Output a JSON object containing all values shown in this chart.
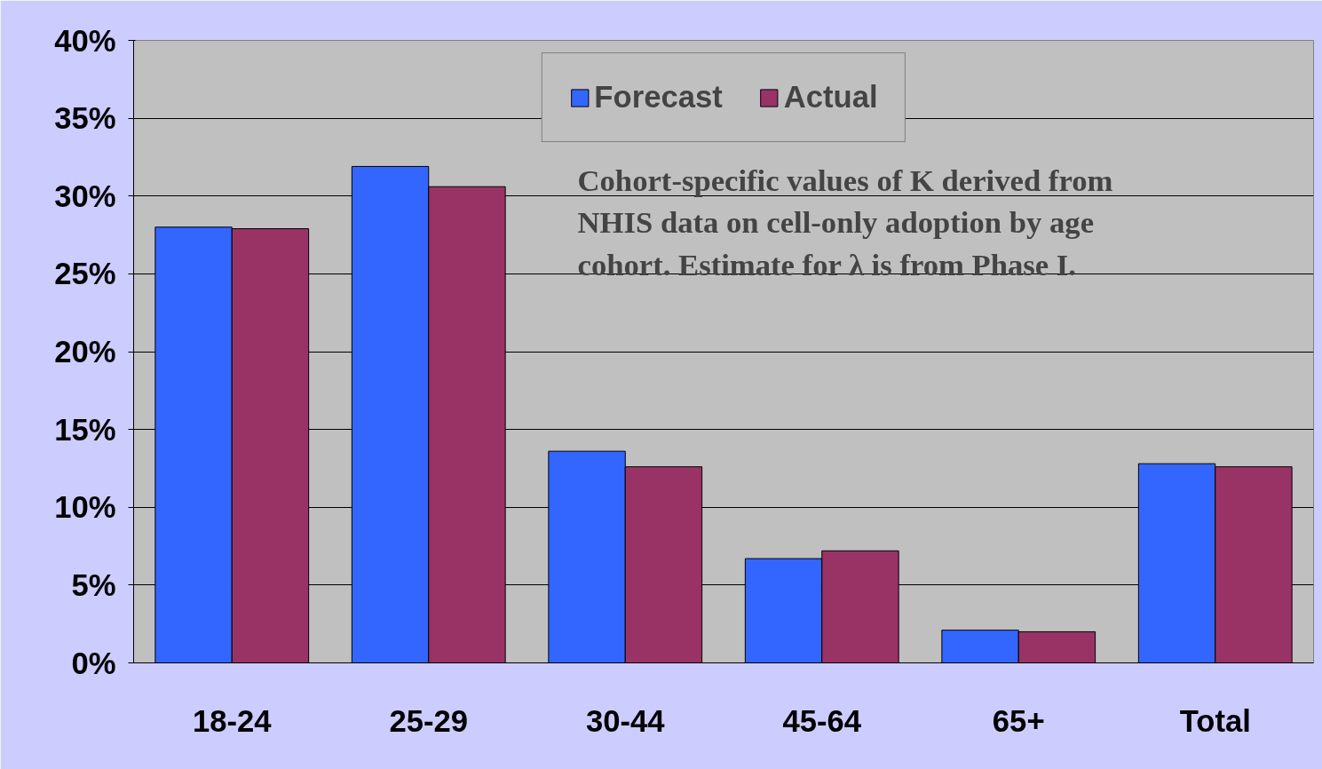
{
  "chart_data": {
    "type": "bar",
    "categories": [
      "18-24",
      "25-29",
      "30-44",
      "45-64",
      "65+",
      "Total"
    ],
    "series": [
      {
        "name": "Forecast",
        "color": "#3366ff",
        "values": [
          28.0,
          31.9,
          13.6,
          6.7,
          2.1,
          12.8
        ]
      },
      {
        "name": "Actual",
        "color": "#993366",
        "values": [
          27.9,
          30.6,
          12.6,
          7.2,
          2.0,
          12.6
        ]
      }
    ],
    "ylim": [
      0,
      40
    ],
    "yticks": [
      {
        "value": 0,
        "label": "0%"
      },
      {
        "value": 5,
        "label": "5%"
      },
      {
        "value": 10,
        "label": "10%"
      },
      {
        "value": 15,
        "label": "15%"
      },
      {
        "value": 20,
        "label": "20%"
      },
      {
        "value": 25,
        "label": "25%"
      },
      {
        "value": 30,
        "label": "30%"
      },
      {
        "value": 35,
        "label": "35%"
      },
      {
        "value": 40,
        "label": "40%"
      }
    ],
    "grid": "y",
    "legend": "top",
    "annotations": [
      "Cohort-specific values of K derived from NHIS data on cell-only adoption by age cohort.  Estimate for λ is from Phase I."
    ]
  }
}
